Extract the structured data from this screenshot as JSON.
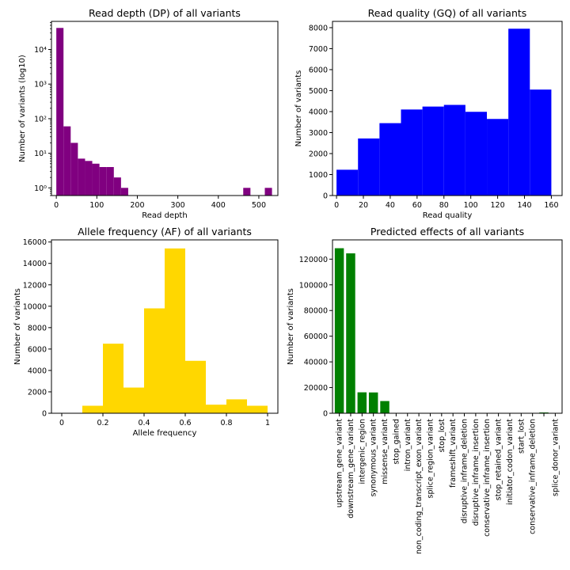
{
  "chart_data": [
    {
      "id": "dp",
      "type": "bar",
      "title": "Read depth (DP) of all variants",
      "xlabel": "Read depth",
      "ylabel": "Number of variants (log10)",
      "yscale": "log",
      "color": "#800080",
      "grid": false,
      "xlim": [
        -12,
        547
      ],
      "ylim": [
        0.6,
        65000
      ],
      "xticks": [
        0,
        100,
        200,
        300,
        400,
        500
      ],
      "yticks": [
        {
          "value": 1,
          "label": "10⁰"
        },
        {
          "value": 10,
          "label": "10¹"
        },
        {
          "value": 100,
          "label": "10²"
        },
        {
          "value": 1000,
          "label": "10³"
        },
        {
          "value": 10000,
          "label": "10⁴"
        }
      ],
      "bin_width": 17.75,
      "bin_starts": [
        0,
        17.75,
        35.5,
        53.25,
        71,
        88.75,
        106.5,
        124.25,
        142,
        159.75,
        461.5,
        514.75
      ],
      "values": [
        42000,
        60,
        20,
        7,
        6,
        5,
        4,
        4,
        2,
        1,
        1,
        1
      ]
    },
    {
      "id": "gq",
      "type": "bar",
      "title": "Read quality (GQ) of all variants",
      "xlabel": "Read quality",
      "ylabel": "Number of variants",
      "yscale": "linear",
      "color": "#0000FF",
      "grid": false,
      "xlim": [
        -3,
        168
      ],
      "ylim": [
        0,
        8300
      ],
      "xticks": [
        0,
        20,
        40,
        60,
        80,
        100,
        120,
        140,
        160
      ],
      "yticks": [
        0,
        1000,
        2000,
        3000,
        4000,
        5000,
        6000,
        7000,
        8000
      ],
      "bin_width": 16,
      "bin_starts": [
        0,
        16,
        32,
        48,
        64,
        80,
        96,
        112,
        128,
        144
      ],
      "values": [
        1230,
        2720,
        3450,
        4100,
        4240,
        4320,
        3990,
        3650,
        7950,
        5050
      ]
    },
    {
      "id": "af",
      "type": "bar",
      "title": "Allele frequency (AF) of all variants",
      "xlabel": "Allele frequency",
      "ylabel": "Number of variants",
      "yscale": "linear",
      "color": "#FFD700",
      "grid": false,
      "xlim": [
        -0.05,
        1.05
      ],
      "ylim": [
        0,
        16200
      ],
      "xticks": [
        0.0,
        0.2,
        0.4,
        0.6,
        0.8,
        1.0
      ],
      "yticks": [
        0,
        2000,
        4000,
        6000,
        8000,
        10000,
        12000,
        14000,
        16000
      ],
      "bin_width": 0.1,
      "bin_starts": [
        0.0,
        0.1,
        0.2,
        0.3,
        0.4,
        0.5,
        0.6,
        0.7,
        0.8,
        0.9
      ],
      "values": [
        0,
        700,
        6500,
        2400,
        9800,
        15400,
        4900,
        800,
        1300,
        700
      ]
    },
    {
      "id": "effects",
      "type": "bar",
      "title": "Predicted effects of all variants",
      "xlabel": "",
      "ylabel": "Number of variants",
      "yscale": "linear",
      "color": "#008000",
      "grid": false,
      "ylim": [
        0,
        135000
      ],
      "yticks": [
        0,
        20000,
        40000,
        60000,
        80000,
        100000,
        120000
      ],
      "categories": [
        "upstream_gene_variant",
        "downstream_gene_variant",
        "intergenic_region",
        "synonymous_variant",
        "missense_variant",
        "stop_gained",
        "intron_variant",
        "non_coding_transcript_exon_variant",
        "splice_region_variant",
        "stop_lost",
        "frameshift_variant",
        "disruptive_inframe_deletion",
        "disruptive_inframe_insertion",
        "conservative_inframe_insertion",
        "stop_retained_variant",
        "initiator_codon_variant",
        "start_lost",
        "conservative_inframe_deletion",
        "",
        "splice_donor_variant"
      ],
      "values": [
        128500,
        124500,
        16300,
        16200,
        9500,
        60,
        40,
        30,
        25,
        20,
        20,
        15,
        15,
        15,
        10,
        10,
        10,
        10,
        600,
        5
      ]
    }
  ]
}
